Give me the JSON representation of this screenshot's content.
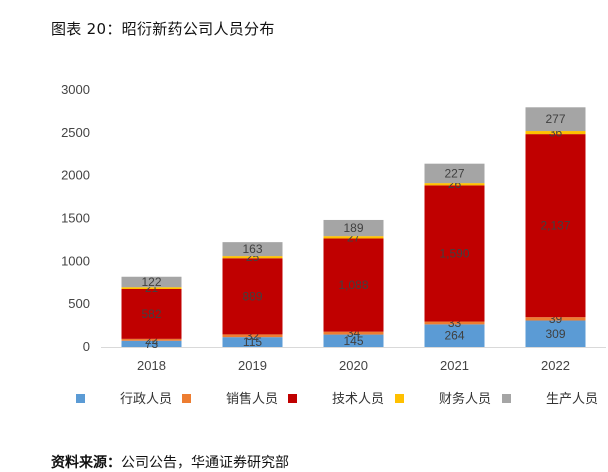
{
  "figure": {
    "title": "图表 20：昭衍新药公司人员分布",
    "source_label": "资料来源：",
    "source_text": "公司公告，华通证券研究部"
  },
  "chart_data": {
    "type": "bar",
    "stacked": true,
    "categories": [
      "2018",
      "2019",
      "2020",
      "2021",
      "2022"
    ],
    "series": [
      {
        "name": "行政人员",
        "color": "#5b9bd5",
        "values": [
          73,
          115,
          145,
          264,
          309
        ]
      },
      {
        "name": "销售人员",
        "color": "#ed7d31",
        "values": [
          22,
          32,
          34,
          33,
          39
        ]
      },
      {
        "name": "技术人员",
        "color": "#c00000",
        "values": [
          582,
          889,
          1088,
          1590,
          2137
        ]
      },
      {
        "name": "财务人员",
        "color": "#ffc000",
        "values": [
          21,
          25,
          27,
          26,
          36
        ]
      },
      {
        "name": "生产人员",
        "color": "#a5a5a5",
        "values": [
          122,
          163,
          189,
          227,
          277
        ]
      }
    ],
    "data_labels": [
      [
        "73",
        "22",
        "582",
        "21",
        "122"
      ],
      [
        "115",
        "32",
        "889",
        "25",
        "163"
      ],
      [
        "145",
        "34",
        "1,088",
        "27",
        "189"
      ],
      [
        "264",
        "33",
        "1,590",
        "26",
        "227"
      ],
      [
        "309",
        "39",
        "2,137",
        "36",
        "277"
      ]
    ],
    "y_ticks": [
      "0",
      "500",
      "1000",
      "1500",
      "2000",
      "2500",
      "3000"
    ],
    "ylim": [
      0,
      3000
    ],
    "grid": false,
    "legend_position": "bottom"
  }
}
